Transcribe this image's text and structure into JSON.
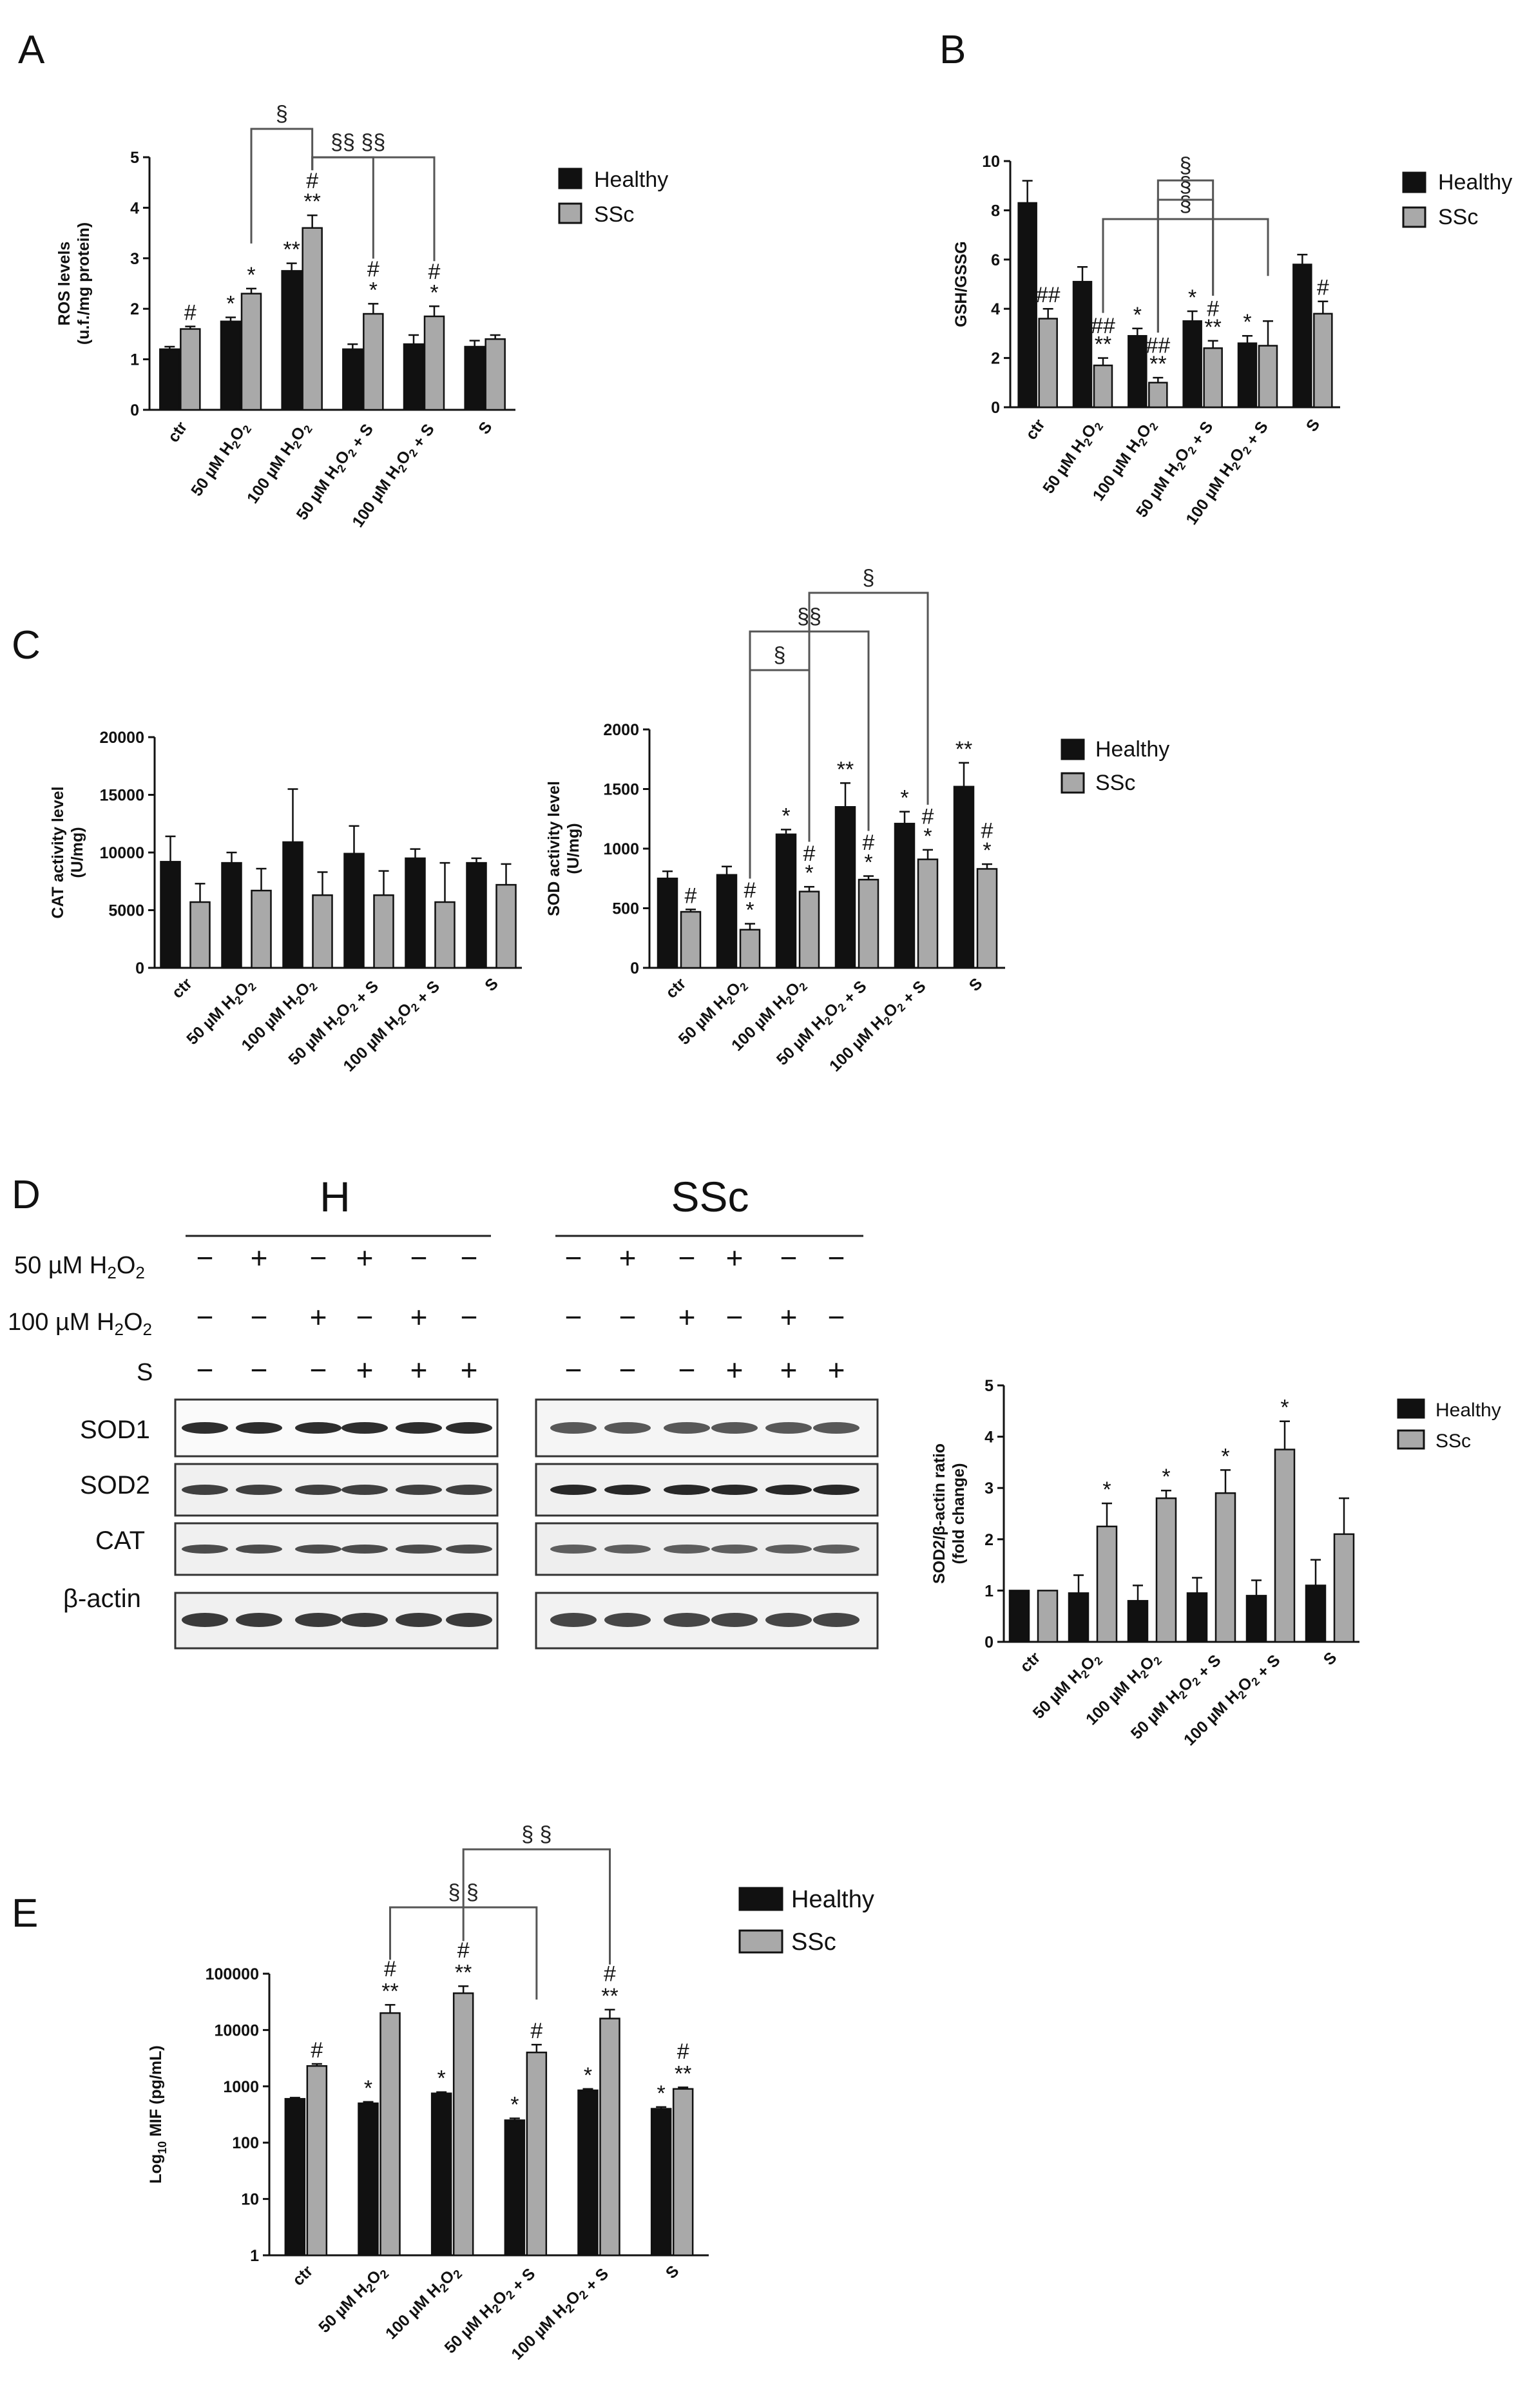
{
  "legend": {
    "healthy": "Healthy",
    "ssc": "SSc"
  },
  "colors": {
    "healthy": "#111111",
    "ssc": "#a9a9a9"
  },
  "panel_labels": {
    "A": "A",
    "B": "B",
    "C": "C",
    "D": "D",
    "E": "E"
  },
  "chart_data": [
    {
      "id": "A",
      "type": "bar",
      "categories": [
        "ctr",
        "50 µM H2O2",
        "100 µM H2O2",
        "50 µM H2O2 + S",
        "100 µM H2O2 + S",
        "S"
      ],
      "ylabel": "ROS levels (u.f./mg protein)",
      "ylim": [
        0,
        5
      ],
      "yticks": [
        0,
        1,
        2,
        3,
        4,
        5
      ],
      "series": [
        {
          "name": "Healthy",
          "values": [
            1.2,
            1.75,
            2.75,
            1.2,
            1.3,
            1.25
          ],
          "errors": [
            0.05,
            0.08,
            0.15,
            0.1,
            0.18,
            0.12
          ],
          "sig": [
            "",
            "*",
            "**",
            "",
            "",
            ""
          ]
        },
        {
          "name": "SSc",
          "values": [
            1.6,
            2.3,
            3.6,
            1.9,
            1.85,
            1.4
          ],
          "errors": [
            0.05,
            0.1,
            0.25,
            0.2,
            0.2,
            0.08
          ],
          "sig": [
            "#",
            "*",
            "#|**",
            "#|*",
            "#|*",
            ""
          ]
        }
      ],
      "brackets": [
        {
          "from": 1,
          "to": 2,
          "label": "§"
        },
        {
          "from": 2,
          "to": 3,
          "label": "§§"
        },
        {
          "from": 2,
          "to": 4,
          "label": "§§"
        }
      ]
    },
    {
      "id": "B",
      "type": "bar",
      "categories": [
        "ctr",
        "50 µM H2O2",
        "100 µM H2O2",
        "50 µM H2O2 + S",
        "100 µM H2O2 + S",
        "S"
      ],
      "ylabel": "GSH/GSSG",
      "ylim": [
        0,
        10
      ],
      "yticks": [
        0,
        2,
        4,
        6,
        8,
        10
      ],
      "series": [
        {
          "name": "Healthy",
          "values": [
            8.3,
            5.1,
            2.9,
            3.5,
            2.6,
            5.8
          ],
          "errors": [
            0.9,
            0.6,
            0.3,
            0.4,
            0.3,
            0.4
          ],
          "sig": [
            "",
            "",
            "*",
            "*",
            "*",
            ""
          ]
        },
        {
          "name": "SSc",
          "values": [
            3.6,
            1.7,
            1.0,
            2.4,
            2.5,
            3.8
          ],
          "errors": [
            0.4,
            0.3,
            0.2,
            0.3,
            1.0,
            0.5
          ],
          "sig": [
            "##",
            "##|**",
            "##|**",
            "#|**",
            "",
            "#"
          ]
        }
      ],
      "brackets": [
        {
          "from": 1,
          "to": 4,
          "label": "§"
        },
        {
          "from": 2,
          "to": 3,
          "label": "§"
        },
        {
          "from": 2,
          "to": 3,
          "label": "§"
        }
      ]
    },
    {
      "id": "C1",
      "type": "bar",
      "categories": [
        "ctr",
        "50 µM H2O2",
        "100 µM H2O2",
        "50 µM H2O2 + S",
        "100 µM H2O2 + S",
        "S"
      ],
      "ylabel": "CAT activity level (U/mg)",
      "ylim": [
        0,
        20000
      ],
      "yticks": [
        0,
        5000,
        10000,
        15000,
        20000
      ],
      "series": [
        {
          "name": "Healthy",
          "values": [
            9200,
            9100,
            10900,
            9900,
            9500,
            9100
          ],
          "errors": [
            2200,
            900,
            4600,
            2400,
            800,
            400
          ],
          "sig": [
            "",
            "",
            "",
            "",
            "",
            ""
          ]
        },
        {
          "name": "SSc",
          "values": [
            5700,
            6700,
            6300,
            6300,
            5700,
            7200
          ],
          "errors": [
            1600,
            1900,
            2000,
            2100,
            3400,
            1800
          ],
          "sig": [
            "",
            "",
            "",
            "",
            "",
            ""
          ]
        }
      ],
      "brackets": []
    },
    {
      "id": "C2",
      "type": "bar",
      "categories": [
        "ctr",
        "50 µM H2O2",
        "100 µM H2O2",
        "50 µM H2O2 + S",
        "100 µM H2O2 + S",
        "S"
      ],
      "ylabel": "SOD activity level (U/mg)",
      "ylim": [
        0,
        2000
      ],
      "yticks": [
        0,
        500,
        1000,
        1500,
        2000
      ],
      "series": [
        {
          "name": "Healthy",
          "values": [
            750,
            780,
            1120,
            1350,
            1210,
            1520
          ],
          "errors": [
            60,
            70,
            40,
            200,
            100,
            200
          ],
          "sig": [
            "",
            "",
            "*",
            "**",
            "*",
            "**"
          ]
        },
        {
          "name": "SSc",
          "values": [
            470,
            320,
            640,
            740,
            910,
            830
          ],
          "errors": [
            20,
            50,
            40,
            30,
            80,
            40
          ],
          "sig": [
            "#",
            "#|*",
            "#|*",
            "#|*",
            "#|*",
            "#|*"
          ]
        }
      ],
      "brackets": [
        {
          "from": 1,
          "to": 2,
          "label": "§"
        },
        {
          "from": 1,
          "to": 3,
          "label": "§§"
        },
        {
          "from": 2,
          "to": 4,
          "label": "§"
        }
      ]
    },
    {
      "id": "D",
      "type": "bar",
      "categories": [
        "ctr",
        "50 µM H2O2",
        "100 µM H2O2",
        "50 µM H2O2 + S",
        "100 µM H2O2 + S",
        "S"
      ],
      "ylabel": "SOD2/β-actin ratio (fold change)",
      "ylim": [
        0,
        5
      ],
      "yticks": [
        0,
        1,
        2,
        3,
        4,
        5
      ],
      "series": [
        {
          "name": "Healthy",
          "values": [
            1.0,
            0.95,
            0.8,
            0.95,
            0.9,
            1.1
          ],
          "errors": [
            0.0,
            0.35,
            0.3,
            0.3,
            0.3,
            0.5
          ],
          "sig": [
            "",
            "",
            "",
            "",
            "",
            ""
          ]
        },
        {
          "name": "SSc",
          "values": [
            1.0,
            2.25,
            2.8,
            2.9,
            3.75,
            2.1
          ],
          "errors": [
            0.0,
            0.45,
            0.15,
            0.45,
            0.55,
            0.7
          ],
          "sig": [
            "",
            "*",
            "*",
            "*",
            "*",
            ""
          ]
        }
      ],
      "brackets": []
    },
    {
      "id": "E",
      "type": "bar",
      "scale": "log",
      "categories": [
        "ctr",
        "50 µM H2O2",
        "100 µM H2O2",
        "50 µM H2O2 + S",
        "100 µM H2O2 + S",
        "S"
      ],
      "ylabel": "Log10 MIF (pg/mL)",
      "ylim": [
        1,
        100000
      ],
      "yticks": [
        1,
        10,
        100,
        1000,
        10000,
        100000
      ],
      "series": [
        {
          "name": "Healthy",
          "values": [
            600,
            500,
            750,
            250,
            850,
            400
          ],
          "errors": [
            30,
            30,
            40,
            20,
            50,
            30
          ],
          "sig": [
            "",
            "*",
            "*",
            "*",
            "*",
            "*"
          ]
        },
        {
          "name": "SSc",
          "values": [
            2300,
            20000,
            45000,
            4000,
            16000,
            900
          ],
          "errors": [
            200,
            8000,
            15000,
            1500,
            7000,
            60
          ],
          "sig": [
            "#",
            "#|**",
            "#|**",
            "#",
            "#|**",
            "#|**"
          ]
        }
      ],
      "brackets": [
        {
          "from": 1,
          "to": 3,
          "label": "§ §"
        },
        {
          "from": 2,
          "to": 4,
          "label": "§ §"
        }
      ]
    }
  ],
  "western_blot": {
    "groups": [
      {
        "title": "H"
      },
      {
        "title": "SSc"
      }
    ],
    "conditions": [
      {
        "label": "50 µM H2O2",
        "signs": [
          "−",
          "+",
          "−",
          "+",
          "−",
          "−"
        ]
      },
      {
        "label": "100 µM H2O2",
        "signs": [
          "−",
          "−",
          "+",
          "−",
          "+",
          "−"
        ]
      },
      {
        "label": "S",
        "signs": [
          "−",
          "−",
          "−",
          "+",
          "+",
          "+"
        ]
      }
    ],
    "proteins": [
      "SOD1",
      "SOD2",
      "CAT",
      "β-actin"
    ]
  }
}
